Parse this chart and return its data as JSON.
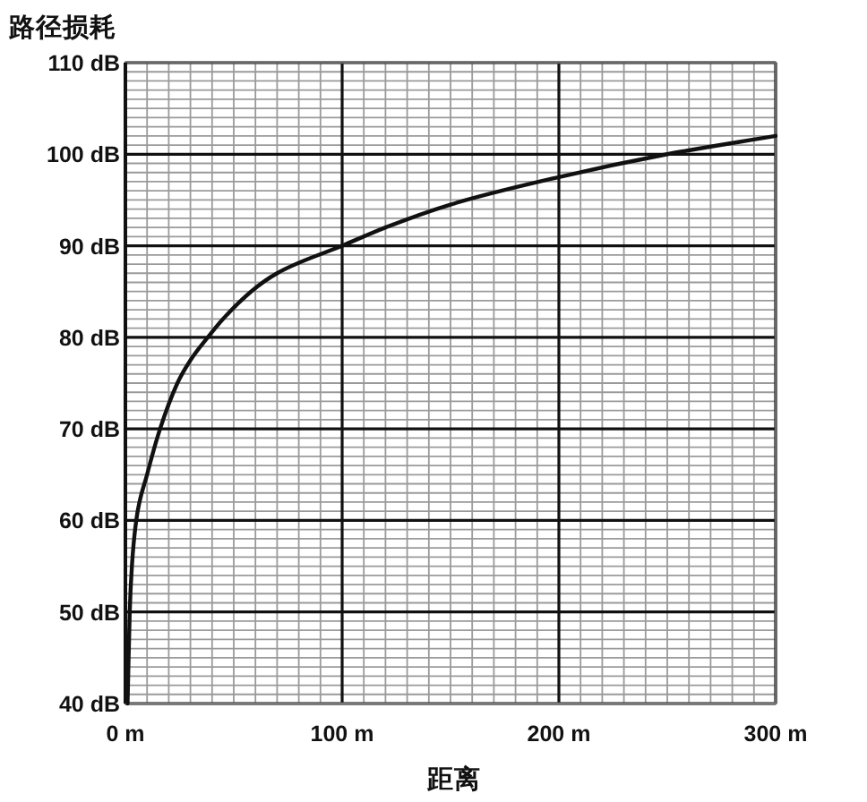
{
  "chart_data": {
    "type": "line",
    "title": "路径损耗",
    "xlabel": "距离",
    "x": [
      1,
      2,
      3,
      5,
      10,
      16,
      24,
      30,
      38,
      45,
      58,
      70,
      100,
      120,
      150,
      200,
      250,
      300
    ],
    "series": [
      {
        "color": "#111111",
        "values": [
          40,
          50,
          55,
          60,
          65,
          70,
          75,
          77.5,
          80,
          82,
          85,
          87,
          90,
          92,
          94.5,
          97.5,
          100,
          102
        ]
      }
    ],
    "xlim": [
      0,
      300
    ],
    "ylim": [
      40,
      110
    ],
    "xticks": [
      {
        "value": 0,
        "label": "0 m"
      },
      {
        "value": 10,
        "label": null
      },
      {
        "value": 20,
        "label": null
      },
      {
        "value": 30,
        "label": null
      },
      {
        "value": 40,
        "label": null
      },
      {
        "value": 50,
        "label": null
      },
      {
        "value": 60,
        "label": null
      },
      {
        "value": 70,
        "label": null
      },
      {
        "value": 80,
        "label": null
      },
      {
        "value": 90,
        "label": null
      },
      {
        "value": 100,
        "label": "100 m"
      },
      {
        "value": 110,
        "label": null
      },
      {
        "value": 120,
        "label": null
      },
      {
        "value": 130,
        "label": null
      },
      {
        "value": 140,
        "label": null
      },
      {
        "value": 150,
        "label": null
      },
      {
        "value": 160,
        "label": null
      },
      {
        "value": 170,
        "label": null
      },
      {
        "value": 180,
        "label": null
      },
      {
        "value": 190,
        "label": null
      },
      {
        "value": 200,
        "label": "200 m"
      },
      {
        "value": 210,
        "label": null
      },
      {
        "value": 220,
        "label": null
      },
      {
        "value": 230,
        "label": null
      },
      {
        "value": 240,
        "label": null
      },
      {
        "value": 250,
        "label": null
      },
      {
        "value": 260,
        "label": null
      },
      {
        "value": 270,
        "label": null
      },
      {
        "value": 280,
        "label": null
      },
      {
        "value": 290,
        "label": null
      },
      {
        "value": 300,
        "label": "300 m"
      }
    ],
    "yticks": [
      {
        "value": 40,
        "label": "40 dB"
      },
      {
        "value": 41,
        "label": null
      },
      {
        "value": 42,
        "label": null
      },
      {
        "value": 43,
        "label": null
      },
      {
        "value": 44,
        "label": null
      },
      {
        "value": 45,
        "label": null
      },
      {
        "value": 46,
        "label": null
      },
      {
        "value": 47,
        "label": null
      },
      {
        "value": 48,
        "label": null
      },
      {
        "value": 49,
        "label": null
      },
      {
        "value": 50,
        "label": "50 dB"
      },
      {
        "value": 51,
        "label": null
      },
      {
        "value": 52,
        "label": null
      },
      {
        "value": 53,
        "label": null
      },
      {
        "value": 54,
        "label": null
      },
      {
        "value": 55,
        "label": null
      },
      {
        "value": 56,
        "label": null
      },
      {
        "value": 57,
        "label": null
      },
      {
        "value": 58,
        "label": null
      },
      {
        "value": 59,
        "label": null
      },
      {
        "value": 60,
        "label": "60 dB"
      },
      {
        "value": 61,
        "label": null
      },
      {
        "value": 62,
        "label": null
      },
      {
        "value": 63,
        "label": null
      },
      {
        "value": 64,
        "label": null
      },
      {
        "value": 65,
        "label": null
      },
      {
        "value": 66,
        "label": null
      },
      {
        "value": 67,
        "label": null
      },
      {
        "value": 68,
        "label": null
      },
      {
        "value": 69,
        "label": null
      },
      {
        "value": 70,
        "label": "70 dB"
      },
      {
        "value": 71,
        "label": null
      },
      {
        "value": 72,
        "label": null
      },
      {
        "value": 73,
        "label": null
      },
      {
        "value": 74,
        "label": null
      },
      {
        "value": 75,
        "label": null
      },
      {
        "value": 76,
        "label": null
      },
      {
        "value": 77,
        "label": null
      },
      {
        "value": 78,
        "label": null
      },
      {
        "value": 79,
        "label": null
      },
      {
        "value": 80,
        "label": "80 dB"
      },
      {
        "value": 81,
        "label": null
      },
      {
        "value": 82,
        "label": null
      },
      {
        "value": 83,
        "label": null
      },
      {
        "value": 84,
        "label": null
      },
      {
        "value": 85,
        "label": null
      },
      {
        "value": 86,
        "label": null
      },
      {
        "value": 87,
        "label": null
      },
      {
        "value": 88,
        "label": null
      },
      {
        "value": 89,
        "label": null
      },
      {
        "value": 90,
        "label": "90 dB"
      },
      {
        "value": 91,
        "label": null
      },
      {
        "value": 92,
        "label": null
      },
      {
        "value": 93,
        "label": null
      },
      {
        "value": 94,
        "label": null
      },
      {
        "value": 95,
        "label": null
      },
      {
        "value": 96,
        "label": null
      },
      {
        "value": 97,
        "label": null
      },
      {
        "value": 98,
        "label": null
      },
      {
        "value": 99,
        "label": null
      },
      {
        "value": 100,
        "label": "100 dB"
      },
      {
        "value": 101,
        "label": null
      },
      {
        "value": 102,
        "label": null
      },
      {
        "value": 103,
        "label": null
      },
      {
        "value": 104,
        "label": null
      },
      {
        "value": 105,
        "label": null
      },
      {
        "value": 106,
        "label": null
      },
      {
        "value": 107,
        "label": null
      },
      {
        "value": 108,
        "label": null
      },
      {
        "value": 109,
        "label": null
      },
      {
        "value": 110,
        "label": "110 dB"
      }
    ],
    "grid": true
  }
}
